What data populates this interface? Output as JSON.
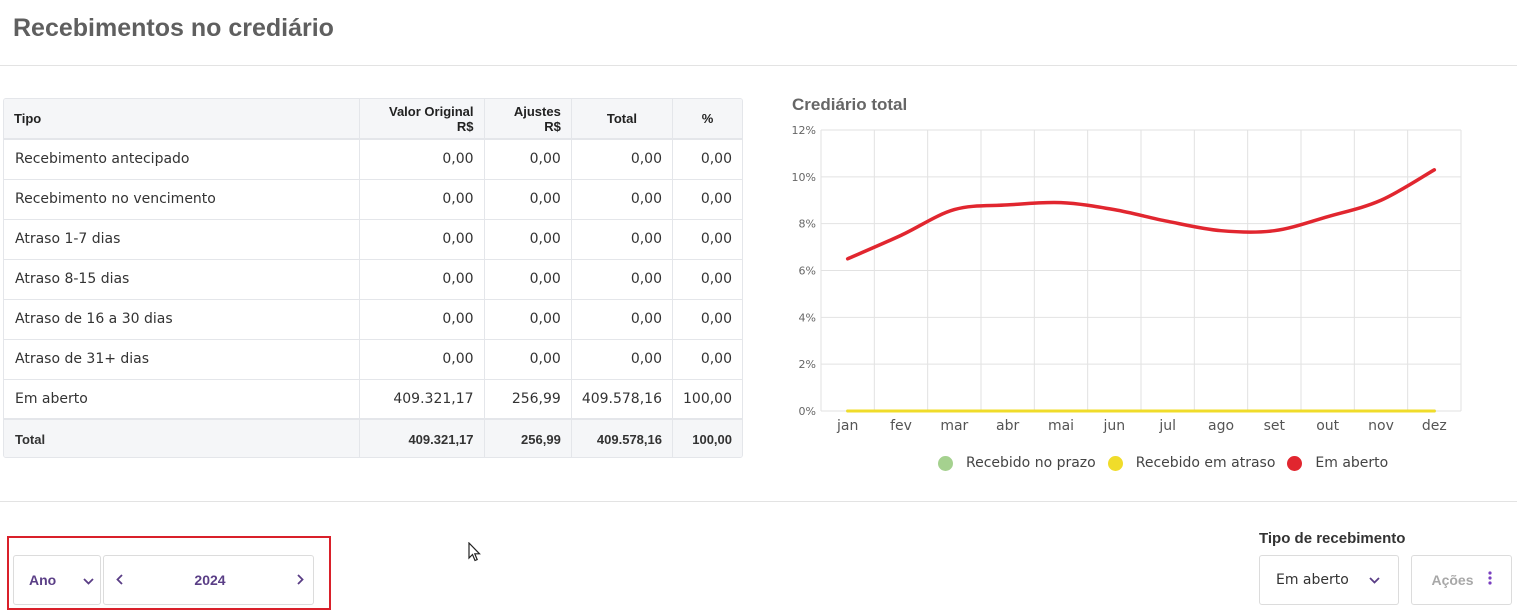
{
  "page": {
    "title": "Recebimentos no crediário"
  },
  "table": {
    "headers": [
      "Tipo",
      "Valor Original R$",
      "Ajustes R$",
      "Total",
      "%"
    ],
    "rows": [
      [
        "Recebimento antecipado",
        "0,00",
        "0,00",
        "0,00",
        "0,00"
      ],
      [
        "Recebimento no vencimento",
        "0,00",
        "0,00",
        "0,00",
        "0,00"
      ],
      [
        "Atraso 1-7 dias",
        "0,00",
        "0,00",
        "0,00",
        "0,00"
      ],
      [
        "Atraso 8-15 dias",
        "0,00",
        "0,00",
        "0,00",
        "0,00"
      ],
      [
        "Atraso de 16 a 30 dias",
        "0,00",
        "0,00",
        "0,00",
        "0,00"
      ],
      [
        "Atraso de 31+ dias",
        "0,00",
        "0,00",
        "0,00",
        "0,00"
      ],
      [
        "Em aberto",
        "409.321,17",
        "256,99",
        "409.578,16",
        "100,00"
      ]
    ],
    "total": [
      "Total",
      "409.321,17",
      "256,99",
      "409.578,16",
      "100,00"
    ]
  },
  "chart_data": {
    "type": "line",
    "title": "Crediário total",
    "categories": [
      "jan",
      "fev",
      "mar",
      "abr",
      "mai",
      "jun",
      "jul",
      "ago",
      "set",
      "out",
      "nov",
      "dez"
    ],
    "y_ticks": [
      "0%",
      "2%",
      "4%",
      "6%",
      "8%",
      "10%",
      "12%"
    ],
    "ylim": [
      0,
      12
    ],
    "grid": true,
    "legend_position": "bottom",
    "series": [
      {
        "name": "Recebido no prazo",
        "color": "#a5d18f",
        "values": [
          0,
          0,
          0,
          0,
          0,
          0,
          0,
          0,
          0,
          0,
          0,
          0
        ]
      },
      {
        "name": "Recebido em atraso",
        "color": "#f0dc2a",
        "values": [
          0,
          0,
          0,
          0,
          0,
          0,
          0,
          0,
          0,
          0,
          0,
          0
        ]
      },
      {
        "name": "Em aberto",
        "color": "#e1262f",
        "values": [
          6.5,
          7.5,
          8.6,
          8.8,
          8.9,
          8.6,
          8.1,
          7.7,
          7.7,
          8.3,
          9.0,
          10.3
        ]
      }
    ]
  },
  "footer": {
    "period_select": "Ano",
    "year": "2024",
    "tipo_label": "Tipo de recebimento",
    "tipo_value": "Em aberto",
    "acoes_label": "Ações",
    "icons": {
      "period_chevron": "chevron-down-icon",
      "prev": "chevron-left-icon",
      "next": "chevron-right-icon",
      "tipo_chevron": "chevron-down-icon",
      "acoes": "kebab-icon"
    }
  }
}
